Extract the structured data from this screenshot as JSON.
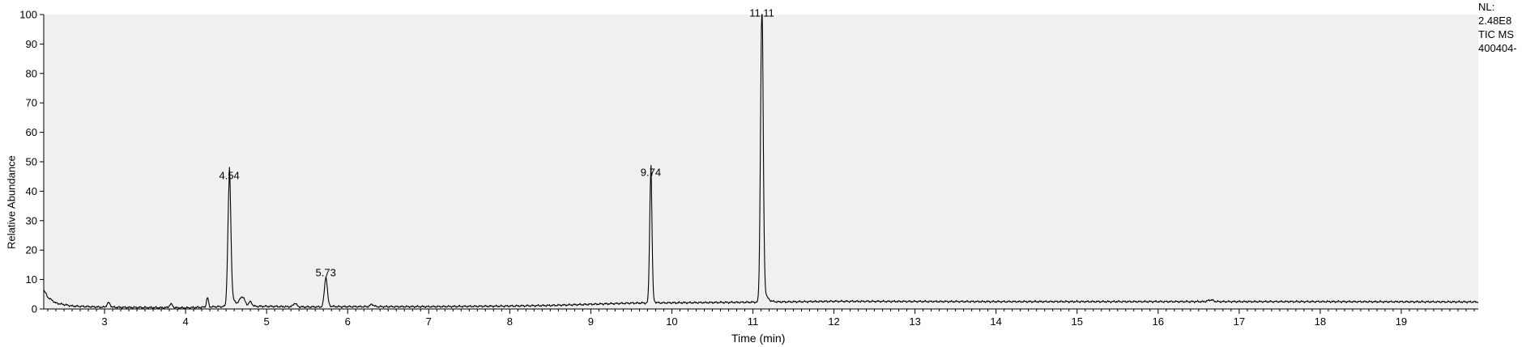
{
  "chart_data": {
    "type": "line",
    "title": "",
    "xlabel": "Time (min)",
    "ylabel": "Relative Abundance",
    "xlim": [
      2.25,
      19.95
    ],
    "ylim": [
      0,
      100
    ],
    "xticks": [
      3,
      4,
      5,
      6,
      7,
      8,
      9,
      10,
      11,
      12,
      13,
      14,
      15,
      16,
      17,
      18,
      19
    ],
    "yticks": [
      0,
      10,
      20,
      30,
      40,
      50,
      60,
      70,
      80,
      90,
      100
    ],
    "grid": false,
    "legend": "none",
    "background": "#f0f0f0",
    "line_color": "#000000",
    "series": [
      {
        "baseline": [
          [
            2.25,
            6.5
          ],
          [
            2.3,
            4.0
          ],
          [
            2.4,
            2.0
          ],
          [
            2.6,
            1.0
          ],
          [
            3.0,
            0.6
          ],
          [
            3.5,
            0.5
          ],
          [
            4.0,
            0.4
          ],
          [
            4.4,
            0.8
          ],
          [
            5.0,
            0.9
          ],
          [
            5.5,
            0.7
          ],
          [
            6.0,
            0.8
          ],
          [
            7.0,
            0.8
          ],
          [
            8.0,
            1.0
          ],
          [
            8.5,
            1.2
          ],
          [
            9.0,
            1.6
          ],
          [
            9.5,
            2.0
          ],
          [
            10.0,
            2.1
          ],
          [
            10.5,
            2.2
          ],
          [
            11.0,
            2.3
          ],
          [
            12.0,
            2.6
          ],
          [
            14.0,
            2.5
          ],
          [
            16.0,
            2.5
          ],
          [
            18.0,
            2.5
          ],
          [
            19.95,
            2.4
          ]
        ],
        "peaks": [
          {
            "rt": 3.05,
            "height": 1.5,
            "width": 0.02
          },
          {
            "rt": 3.82,
            "height": 1.2,
            "width": 0.02
          },
          {
            "rt": 4.27,
            "height": 3.2,
            "width": 0.012
          },
          {
            "rt": 4.54,
            "height": 42.5,
            "width": 0.018,
            "tail": 0.06
          },
          {
            "rt": 4.7,
            "height": 3.0,
            "width": 0.03
          },
          {
            "rt": 4.8,
            "height": 1.5,
            "width": 0.02
          },
          {
            "rt": 5.35,
            "height": 1.2,
            "width": 0.02
          },
          {
            "rt": 5.73,
            "height": 9.5,
            "width": 0.018,
            "tail": 0.04
          },
          {
            "rt": 6.3,
            "height": 0.8,
            "width": 0.02
          },
          {
            "rt": 9.74,
            "height": 43.5,
            "width": 0.014,
            "tail": 0.02
          },
          {
            "rt": 11.11,
            "height": 97.7,
            "width": 0.016,
            "tail": 0.035
          },
          {
            "rt": 16.65,
            "height": 0.6,
            "width": 0.03
          }
        ]
      }
    ],
    "peak_labels": [
      {
        "x": 4.54,
        "y": 42.5,
        "label": "4.54"
      },
      {
        "x": 5.73,
        "y": 9.5,
        "label": "5.73"
      },
      {
        "x": 9.74,
        "y": 43.5,
        "label": "9.74"
      },
      {
        "x": 11.11,
        "y": 97.7,
        "label": "11.11"
      }
    ]
  },
  "side_info": {
    "nl_label": "NL:",
    "nl_value": "2.48E8",
    "scan_filter": "TIC  MS",
    "file_name": "400404-"
  }
}
